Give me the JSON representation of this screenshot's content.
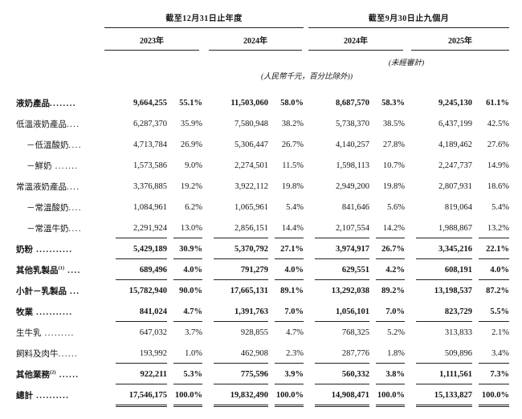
{
  "header": {
    "col_group_year_end": "截至12月31日止年度",
    "col_group_nine_months": "截至9月30日止九個月",
    "years": [
      "2023年",
      "2024年",
      "2024年",
      "2025年"
    ],
    "unaudited_note": "(未經審計)",
    "unit_note": "(人民幣千元，百分比除外))"
  },
  "table": {
    "rows": [
      {
        "label": "液奶產品",
        "sup": "",
        "dots": "........",
        "indent": false,
        "bold": true,
        "underline": "none",
        "values": [
          "9,664,255",
          "55.1%",
          "11,503,060",
          "58.0%",
          "8,687,570",
          "58.3%",
          "9,245,130",
          "61.1%"
        ]
      },
      {
        "label": "低溫液奶產品",
        "sup": "",
        "dots": "....",
        "indent": false,
        "bold": false,
        "underline": "none",
        "values": [
          "6,287,370",
          "35.9%",
          "7,580,948",
          "38.2%",
          "5,738,370",
          "38.5%",
          "6,437,199",
          "42.5%"
        ]
      },
      {
        "label": "－低溫酸奶",
        "sup": "",
        "dots": "....",
        "indent": true,
        "bold": false,
        "underline": "none",
        "values": [
          "4,713,784",
          "26.9%",
          "5,306,447",
          "26.7%",
          "4,140,257",
          "27.8%",
          "4,189,462",
          "27.6%"
        ]
      },
      {
        "label": "－鮮奶",
        "sup": "",
        "dots": " .......",
        "indent": true,
        "bold": false,
        "underline": "none",
        "values": [
          "1,573,586",
          "9.0%",
          "2,274,501",
          "11.5%",
          "1,598,113",
          "10.7%",
          "2,247,737",
          "14.9%"
        ]
      },
      {
        "label": "常溫液奶產品",
        "sup": "",
        "dots": "....",
        "indent": false,
        "bold": false,
        "underline": "none",
        "values": [
          "3,376,885",
          "19.2%",
          "3,922,112",
          "19.8%",
          "2,949,200",
          "19.8%",
          "2,807,931",
          "18.6%"
        ]
      },
      {
        "label": "－常溫酸奶",
        "sup": "",
        "dots": "....",
        "indent": true,
        "bold": false,
        "underline": "none",
        "values": [
          "1,084,961",
          "6.2%",
          "1,065,961",
          "5.4%",
          "841,646",
          "5.6%",
          "819,064",
          "5.4%"
        ]
      },
      {
        "label": "－常溫牛奶",
        "sup": "",
        "dots": "....",
        "indent": true,
        "bold": false,
        "underline": "single",
        "values": [
          "2,291,924",
          "13.0%",
          "2,856,151",
          "14.4%",
          "2,107,554",
          "14.2%",
          "1,988,867",
          "13.2%"
        ]
      },
      {
        "label": "奶粉",
        "sup": "",
        "dots": " ...........",
        "indent": false,
        "bold": true,
        "underline": "single",
        "values": [
          "5,429,189",
          "30.9%",
          "5,370,792",
          "27.1%",
          "3,974,917",
          "26.7%",
          "3,345,216",
          "22.1%"
        ]
      },
      {
        "label": "其他乳製品",
        "sup": "(1)",
        "dots": " ....",
        "indent": false,
        "bold": true,
        "underline": "single",
        "values": [
          "689,496",
          "4.0%",
          "791,279",
          "4.0%",
          "629,551",
          "4.2%",
          "608,191",
          "4.0%"
        ]
      },
      {
        "label": "小計－乳製品",
        "sup": "",
        "dots": " ...",
        "indent": false,
        "bold": true,
        "underline": "none",
        "values": [
          "15,782,940",
          "90.0%",
          "17,665,131",
          "89.1%",
          "13,292,038",
          "89.2%",
          "13,198,537",
          "87.2%"
        ]
      },
      {
        "label": "牧業",
        "sup": "",
        "dots": " ...........",
        "indent": false,
        "bold": true,
        "underline": "single",
        "values": [
          "841,024",
          "4.7%",
          "1,391,763",
          "7.0%",
          "1,056,101",
          "7.0%",
          "823,729",
          "5.5%"
        ]
      },
      {
        "label": "生牛乳",
        "sup": "",
        "dots": " .........",
        "indent": false,
        "bold": false,
        "underline": "none",
        "values": [
          "647,032",
          "3.7%",
          "928,855",
          "4.7%",
          "768,325",
          "5.2%",
          "313,833",
          "2.1%"
        ]
      },
      {
        "label": "飼料及肉牛",
        "sup": "",
        "dots": "......",
        "indent": false,
        "bold": false,
        "underline": "single",
        "values": [
          "193,992",
          "1.0%",
          "462,908",
          "2.3%",
          "287,776",
          "1.8%",
          "509,896",
          "3.4%"
        ]
      },
      {
        "label": "其他業務",
        "sup": "(2)",
        "dots": " ......",
        "indent": false,
        "bold": true,
        "underline": "single",
        "values": [
          "922,211",
          "5.3%",
          "775,596",
          "3.9%",
          "560,332",
          "3.8%",
          "1,111,561",
          "7.3%"
        ]
      },
      {
        "label": "總計",
        "sup": "",
        "dots": " ..........",
        "indent": false,
        "bold": true,
        "underline": "double",
        "values": [
          "17,546,175",
          "100.0%",
          "19,832,490",
          "100.0%",
          "14,908,471",
          "100.0%",
          "15,133,827",
          "100.0%"
        ]
      }
    ]
  }
}
